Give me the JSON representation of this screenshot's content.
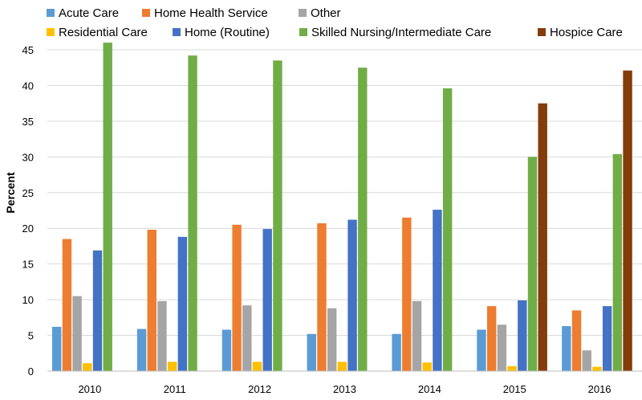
{
  "chart_data": {
    "type": "bar",
    "title": "",
    "xlabel": "",
    "ylabel": "Percent",
    "ylim": [
      0,
      45
    ],
    "yticks": [
      0,
      5,
      10,
      15,
      20,
      25,
      30,
      35,
      40,
      45
    ],
    "grid": true,
    "legend_position": "top",
    "categories": [
      "2010",
      "2011",
      "2012",
      "2013",
      "2014",
      "2015",
      "2016"
    ],
    "series": [
      {
        "name": "Acute Care",
        "color": "#5b9bd5",
        "values": [
          6.2,
          5.9,
          5.8,
          5.2,
          5.2,
          5.8,
          6.3
        ]
      },
      {
        "name": "Home Health Service",
        "color": "#ed7d31",
        "values": [
          18.5,
          19.8,
          20.5,
          20.7,
          21.5,
          9.1,
          8.5
        ]
      },
      {
        "name": "Other",
        "color": "#a5a5a5",
        "values": [
          10.5,
          9.8,
          9.2,
          8.8,
          9.8,
          6.5,
          2.9
        ]
      },
      {
        "name": "Residential Care",
        "color": "#ffc000",
        "values": [
          1.1,
          1.3,
          1.3,
          1.3,
          1.2,
          0.7,
          0.6
        ]
      },
      {
        "name": "Home (Routine)",
        "color": "#4472c4",
        "values": [
          16.9,
          18.8,
          19.9,
          21.2,
          22.6,
          9.9,
          9.1
        ]
      },
      {
        "name": "Skilled Nursing/Intermediate Care",
        "color": "#70ad47",
        "values": [
          46.0,
          44.2,
          43.5,
          42.5,
          39.6,
          30.0,
          30.4
        ]
      },
      {
        "name": "Hospice Care",
        "color": "#843c0c",
        "values": [
          null,
          null,
          null,
          null,
          null,
          37.5,
          42.1
        ]
      }
    ]
  }
}
